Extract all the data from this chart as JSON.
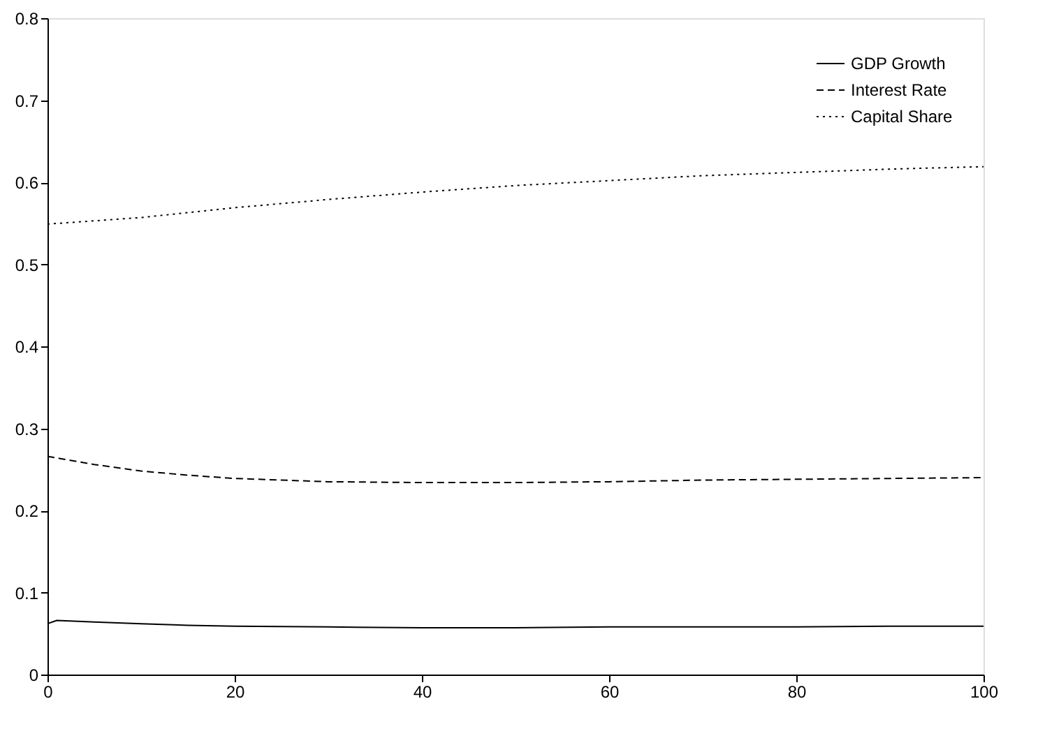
{
  "chart_data": {
    "type": "line",
    "legend": "top right",
    "grid": false,
    "marker": "none",
    "xlim": [
      0,
      100
    ],
    "xticks": [
      0,
      20,
      40,
      60,
      80,
      100
    ],
    "ylim": [
      0,
      0.8
    ],
    "yticks": [
      0,
      0.1,
      0.2,
      0.3,
      0.4,
      0.5,
      0.6,
      0.7,
      0.8
    ],
    "series": [
      {
        "name": "GDP Growth",
        "color": "#000000",
        "line_style": "solid",
        "x": [
          0,
          1,
          5,
          10,
          15,
          20,
          30,
          40,
          50,
          60,
          70,
          80,
          90,
          100
        ],
        "values": [
          0.062,
          0.066,
          0.064,
          0.062,
          0.06,
          0.059,
          0.058,
          0.057,
          0.057,
          0.058,
          0.058,
          0.058,
          0.059,
          0.059
        ]
      },
      {
        "name": "Interest Rate",
        "color": "#000000",
        "line_style": "dashed",
        "x": [
          0,
          5,
          10,
          15,
          20,
          25,
          30,
          40,
          50,
          60,
          70,
          80,
          90,
          100
        ],
        "values": [
          0.266,
          0.256,
          0.248,
          0.243,
          0.239,
          0.237,
          0.235,
          0.234,
          0.234,
          0.235,
          0.237,
          0.238,
          0.239,
          0.24
        ]
      },
      {
        "name": "Capital Share",
        "color": "#000000",
        "line_style": "dotted",
        "x": [
          0,
          10,
          20,
          30,
          40,
          50,
          60,
          70,
          80,
          90,
          100
        ],
        "values": [
          0.549,
          0.557,
          0.569,
          0.579,
          0.588,
          0.596,
          0.602,
          0.608,
          0.612,
          0.616,
          0.619
        ]
      }
    ]
  }
}
